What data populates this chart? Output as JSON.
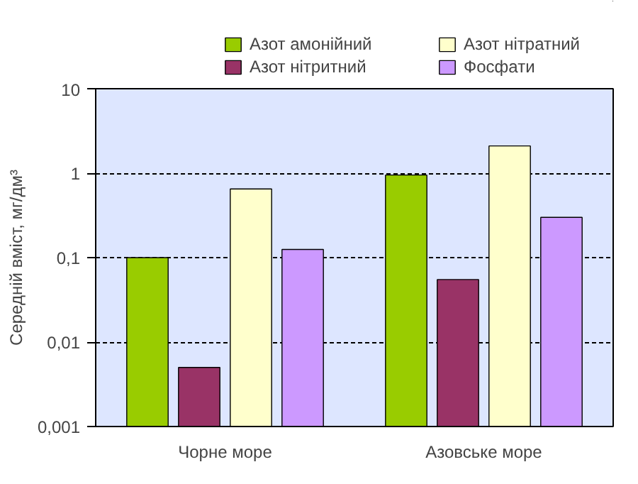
{
  "chart_data": {
    "type": "bar",
    "categories": [
      "Чорне море",
      "Азовське море"
    ],
    "ylabel": "Середній вміст, мг/дм³",
    "log": true,
    "ylim": [
      0.001,
      10
    ],
    "yticks": [
      {
        "value": 0.001,
        "label": "0,001"
      },
      {
        "value": 0.01,
        "label": "0,01"
      },
      {
        "value": 0.1,
        "label": "0,1"
      },
      1,
      10
    ],
    "grid": "y",
    "legend": "top",
    "series": [
      {
        "name": "Азот амонійний",
        "color": "#99cc00",
        "values": [
          0.1,
          0.95
        ]
      },
      {
        "name": "Азот нітритний",
        "color": "#993366",
        "values": [
          0.005,
          0.055
        ]
      },
      {
        "name": "Азот нітратний",
        "color": "#ffffcc",
        "values": [
          0.65,
          2.1
        ]
      },
      {
        "name": "Фосфати",
        "color": "#cc99ff",
        "values": [
          0.125,
          0.3
        ]
      }
    ]
  }
}
